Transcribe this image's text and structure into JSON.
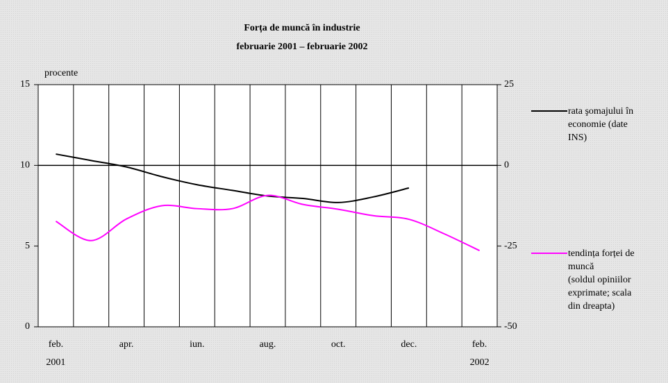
{
  "chart_data": {
    "type": "line",
    "title": "Forța de muncă în industrie",
    "subtitle": "februarie 2001 – februarie 2002",
    "y_label": "procente",
    "categories": [
      "feb.",
      null,
      "apr.",
      null,
      "iun.",
      null,
      "aug.",
      null,
      "oct.",
      null,
      "dec.",
      null,
      "feb."
    ],
    "years": [
      "2001",
      null,
      null,
      null,
      null,
      null,
      null,
      null,
      null,
      null,
      null,
      null,
      "2002"
    ],
    "series": [
      {
        "name": "rata şomajului în\neconomie (date\nINS)",
        "color": "#000000",
        "values": [
          10.7,
          10.3,
          9.9,
          9.3,
          8.8,
          8.45,
          8.1,
          7.95,
          7.7,
          8.05,
          8.6,
          null,
          null
        ]
      },
      {
        "name": "tendința forței de\nmuncă\n(soldul opiniilor\nexprimate; scala\ndin dreapta)",
        "color": "#ff00ff",
        "axis": "y2",
        "values": [
          -17.3,
          -23.3,
          -16.6,
          -12.5,
          -13.4,
          -13.4,
          -9.3,
          -12.1,
          -13.6,
          -15.6,
          -16.7,
          -21.2,
          -26.4
        ]
      }
    ],
    "ylim": [
      0,
      15
    ],
    "yticks": [
      0,
      5,
      10,
      15
    ],
    "y2lim": [
      -50,
      25
    ],
    "y2ticks": [
      -50,
      -25,
      0,
      25
    ],
    "hline_y2": 0
  }
}
